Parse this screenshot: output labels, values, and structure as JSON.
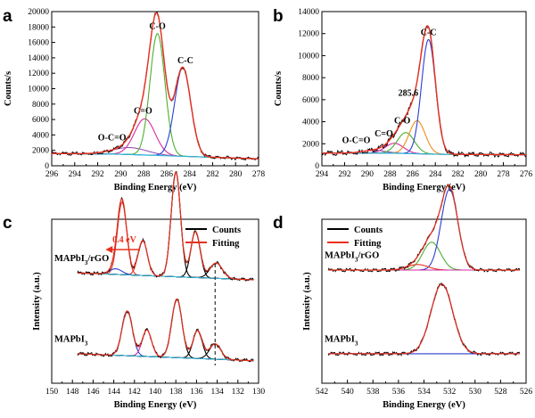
{
  "chart_data": [
    {
      "type": "line",
      "panel": "a",
      "xlabel": "Binding Energy (eV)",
      "ylabel": "Counts/s",
      "xlim": [
        296,
        278
      ],
      "ylim": [
        0,
        20000
      ],
      "xticks": [
        296,
        294,
        292,
        290,
        288,
        286,
        284,
        282,
        280,
        278
      ],
      "yticks": [
        0,
        2000,
        4000,
        6000,
        8000,
        10000,
        12000,
        14000,
        16000,
        18000,
        20000
      ],
      "background": {
        "color": "#2fb4d6",
        "points": [
          [
            296,
            1600
          ],
          [
            290,
            1500
          ],
          [
            284,
            1200
          ],
          [
            278,
            900
          ]
        ]
      },
      "peaks": [
        {
          "label": "O-C=O",
          "center": 289.2,
          "height": 900,
          "width": 1.5,
          "color": "#9a4fb7"
        },
        {
          "label": "C=O",
          "center": 287.9,
          "height": 4700,
          "width": 0.9,
          "color": "#d12c9f"
        },
        {
          "label": "C-O",
          "center": 286.8,
          "height": 15800,
          "width": 0.65,
          "color": "#4caf2f"
        },
        {
          "label": "C-C",
          "center": 284.6,
          "height": 11500,
          "width": 0.7,
          "color": "#2a3fd1"
        }
      ],
      "envelope_color": "#e8301f",
      "raw_color": "#000000"
    },
    {
      "type": "line",
      "panel": "b",
      "xlabel": "Binding Energy (eV)",
      "ylabel": "Counts/s",
      "xlim": [
        294,
        276
      ],
      "ylim": [
        0,
        14000
      ],
      "xticks": [
        294,
        292,
        290,
        288,
        286,
        284,
        282,
        280,
        278,
        276
      ],
      "yticks": [
        0,
        2000,
        4000,
        6000,
        8000,
        10000,
        12000,
        14000
      ],
      "background": {
        "color": "#2fb4d6",
        "points": [
          [
            294,
            1150
          ],
          [
            288,
            1150
          ],
          [
            284,
            1050
          ],
          [
            276,
            1000
          ]
        ]
      },
      "peaks": [
        {
          "label": "O-C=O",
          "center": 289.4,
          "height": 250,
          "width": 1.0,
          "color": "#9a4fb7"
        },
        {
          "label": "C=O",
          "center": 287.6,
          "height": 900,
          "width": 0.8,
          "color": "#d12c9f"
        },
        {
          "label": "C-O",
          "center": 286.6,
          "height": 1900,
          "width": 0.75,
          "color": "#4caf2f"
        },
        {
          "label": "285.6",
          "center": 285.6,
          "height": 3000,
          "width": 0.7,
          "color": "#f08a1d"
        },
        {
          "label": "C-C",
          "center": 284.6,
          "height": 10400,
          "width": 0.62,
          "color": "#2a3fd1"
        }
      ],
      "envelope_color": "#e8301f",
      "raw_color": "#000000"
    },
    {
      "type": "line",
      "panel": "c",
      "xlabel": "Binding Energy (eV)",
      "ylabel": "Intensity (a.u.)",
      "xlim": [
        150,
        130
      ],
      "xticks": [
        150,
        148,
        146,
        144,
        142,
        140,
        138,
        136,
        134,
        132,
        130
      ],
      "legend": [
        {
          "name": "Counts",
          "color": "#000000"
        },
        {
          "name": "Fitting",
          "color": "#e8301f"
        }
      ],
      "legend_position": "top-right",
      "shift_annotation": {
        "text": "0.4 eV",
        "color": "#e8301f"
      },
      "dashed_line_x": 134.2,
      "traces": [
        {
          "label": "MAPbI3/rGO",
          "offset": 0.58,
          "baseline": {
            "color": "#2fb4d6",
            "from": [
              147.5,
              0.0
            ],
            "to": [
              130.5,
              -0.05
            ]
          },
          "peaks": [
            {
              "center": 143.2,
              "height": 0.52,
              "width": 0.45,
              "color": "#e8301f"
            },
            {
              "center": 141.2,
              "height": 0.25,
              "width": 0.45,
              "color": "#e8301f"
            },
            {
              "center": 143.8,
              "height": 0.04,
              "width": 0.6,
              "color": "#2a3fd1"
            },
            {
              "center": 138.0,
              "height": 0.75,
              "width": 0.45,
              "color": "#000000"
            },
            {
              "center": 136.1,
              "height": 0.33,
              "width": 0.45,
              "color": "#000000"
            },
            {
              "center": 134.1,
              "height": 0.11,
              "width": 0.6,
              "color": "#000000"
            }
          ]
        },
        {
          "label": "MAPbI3",
          "offset": 0.0,
          "baseline": {
            "color": "#2fb4d6",
            "from": [
              147.5,
              0.0
            ],
            "to": [
              130.5,
              -0.05
            ]
          },
          "peaks": [
            {
              "center": 142.7,
              "height": 0.32,
              "width": 0.5,
              "color": "#2a3fd1"
            },
            {
              "center": 140.8,
              "height": 0.19,
              "width": 0.45,
              "color": "#d12c9f"
            },
            {
              "center": 137.9,
              "height": 0.42,
              "width": 0.5,
              "color": "#000000"
            },
            {
              "center": 135.9,
              "height": 0.2,
              "width": 0.45,
              "color": "#000000"
            },
            {
              "center": 134.2,
              "height": 0.11,
              "width": 0.55,
              "color": "#000000"
            }
          ]
        }
      ]
    },
    {
      "type": "line",
      "panel": "d",
      "xlabel": "Binding Energy (eV)",
      "ylabel": "Intensity (a.u.)",
      "xlim": [
        542,
        526
      ],
      "xticks": [
        542,
        540,
        538,
        536,
        534,
        532,
        530,
        528,
        526
      ],
      "legend": [
        {
          "name": "Counts",
          "color": "#000000"
        },
        {
          "name": "Fitting",
          "color": "#e8301f"
        }
      ],
      "legend_position": "top-left",
      "traces": [
        {
          "label": "MAPbI3/rGO",
          "offset": 0.6,
          "baseline": {
            "color": "#d12c9f",
            "from": [
              541.5,
              0.0
            ],
            "to": [
              526.5,
              0.0
            ]
          },
          "peaks": [
            {
              "center": 533.4,
              "height": 0.2,
              "width": 0.7,
              "color": "#4caf2f"
            },
            {
              "center": 532.0,
              "height": 0.58,
              "width": 0.65,
              "color": "#2a3fd1"
            },
            {
              "center": 534.5,
              "height": 0.04,
              "width": 0.8,
              "color": "#e8301f"
            }
          ]
        },
        {
          "label": "MAPbI3",
          "offset": 0.0,
          "baseline": {
            "color": "#2a3fd1",
            "from": [
              541.5,
              0.0
            ],
            "to": [
              526.5,
              0.0
            ]
          },
          "peaks": [
            {
              "center": 532.6,
              "height": 0.5,
              "width": 0.85,
              "color": "#2a3fd1"
            }
          ]
        }
      ]
    }
  ]
}
